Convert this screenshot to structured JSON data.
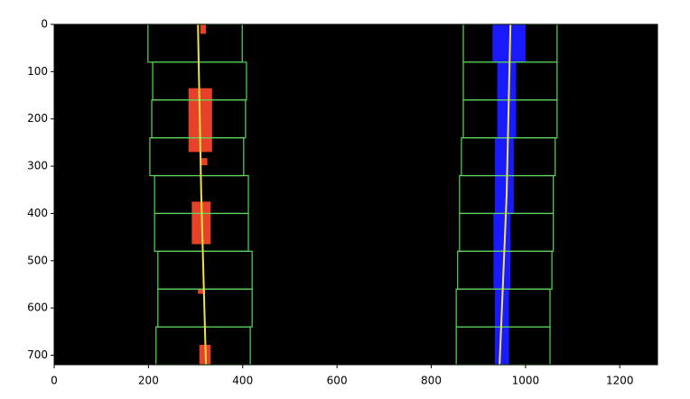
{
  "chart_data": {
    "type": "image",
    "background": "#000000",
    "xlim": [
      0,
      1280
    ],
    "ylim": [
      720,
      0
    ],
    "xticks": [
      0,
      200,
      400,
      600,
      800,
      1000,
      1200
    ],
    "yticks": [
      0,
      100,
      200,
      300,
      400,
      500,
      600,
      700
    ],
    "windows": {
      "color": "#5cd65c",
      "boxes": [
        {
          "x": [
            199,
            399
          ],
          "y": [
            0,
            80
          ]
        },
        {
          "x": [
            209,
            408
          ],
          "y": [
            80,
            160
          ]
        },
        {
          "x": [
            207,
            406
          ],
          "y": [
            160,
            240
          ]
        },
        {
          "x": [
            203,
            402
          ],
          "y": [
            240,
            320
          ]
        },
        {
          "x": [
            213,
            412
          ],
          "y": [
            320,
            400
          ]
        },
        {
          "x": [
            213,
            412
          ],
          "y": [
            400,
            480
          ]
        },
        {
          "x": [
            220,
            420
          ],
          "y": [
            480,
            560
          ]
        },
        {
          "x": [
            220,
            420
          ],
          "y": [
            560,
            640
          ]
        },
        {
          "x": [
            216,
            416
          ],
          "y": [
            640,
            720
          ]
        },
        {
          "x": [
            868,
            1067
          ],
          "y": [
            0,
            80
          ]
        },
        {
          "x": [
            868,
            1067
          ],
          "y": [
            80,
            160
          ]
        },
        {
          "x": [
            868,
            1067
          ],
          "y": [
            160,
            240
          ]
        },
        {
          "x": [
            864,
            1063
          ],
          "y": [
            240,
            320
          ]
        },
        {
          "x": [
            860,
            1059
          ],
          "y": [
            320,
            400
          ]
        },
        {
          "x": [
            860,
            1059
          ],
          "y": [
            400,
            480
          ]
        },
        {
          "x": [
            856,
            1056
          ],
          "y": [
            480,
            560
          ]
        },
        {
          "x": [
            853,
            1052
          ],
          "y": [
            560,
            640
          ]
        },
        {
          "x": [
            853,
            1052
          ],
          "y": [
            640,
            720
          ]
        }
      ]
    },
    "pixels": [
      {
        "color": "#e8412a",
        "regions": [
          {
            "x": [
              310,
              322
            ],
            "y": [
              0,
              20
            ]
          },
          {
            "x": [
              285,
              335
            ],
            "y": [
              135,
              270
            ]
          },
          {
            "x": [
              310,
              325
            ],
            "y": [
              283,
              298
            ]
          },
          {
            "x": [
              292,
              332
            ],
            "y": [
              375,
              465
            ]
          },
          {
            "x": [
              305,
              320
            ],
            "y": [
              560,
              570
            ]
          },
          {
            "x": [
              308,
              332
            ],
            "y": [
              678,
              720
            ]
          }
        ]
      },
      {
        "color": "#1a1aff",
        "regions": [
          {
            "x": [
              930,
              1000
            ],
            "y": [
              0,
              80
            ]
          },
          {
            "x": [
              940,
              980
            ],
            "y": [
              80,
              240
            ]
          },
          {
            "x": [
              935,
              975
            ],
            "y": [
              240,
              400
            ]
          },
          {
            "x": [
              932,
              968
            ],
            "y": [
              400,
              560
            ]
          },
          {
            "x": [
              935,
              965
            ],
            "y": [
              560,
              720
            ]
          }
        ]
      }
    ],
    "fits": [
      {
        "color": "#f0e442",
        "x": [
          305,
          312,
          322
        ],
        "y": [
          0,
          360,
          720
        ]
      },
      {
        "color": "#f0e442",
        "x": [
          968,
          960,
          945
        ],
        "y": [
          0,
          360,
          720
        ]
      }
    ]
  }
}
